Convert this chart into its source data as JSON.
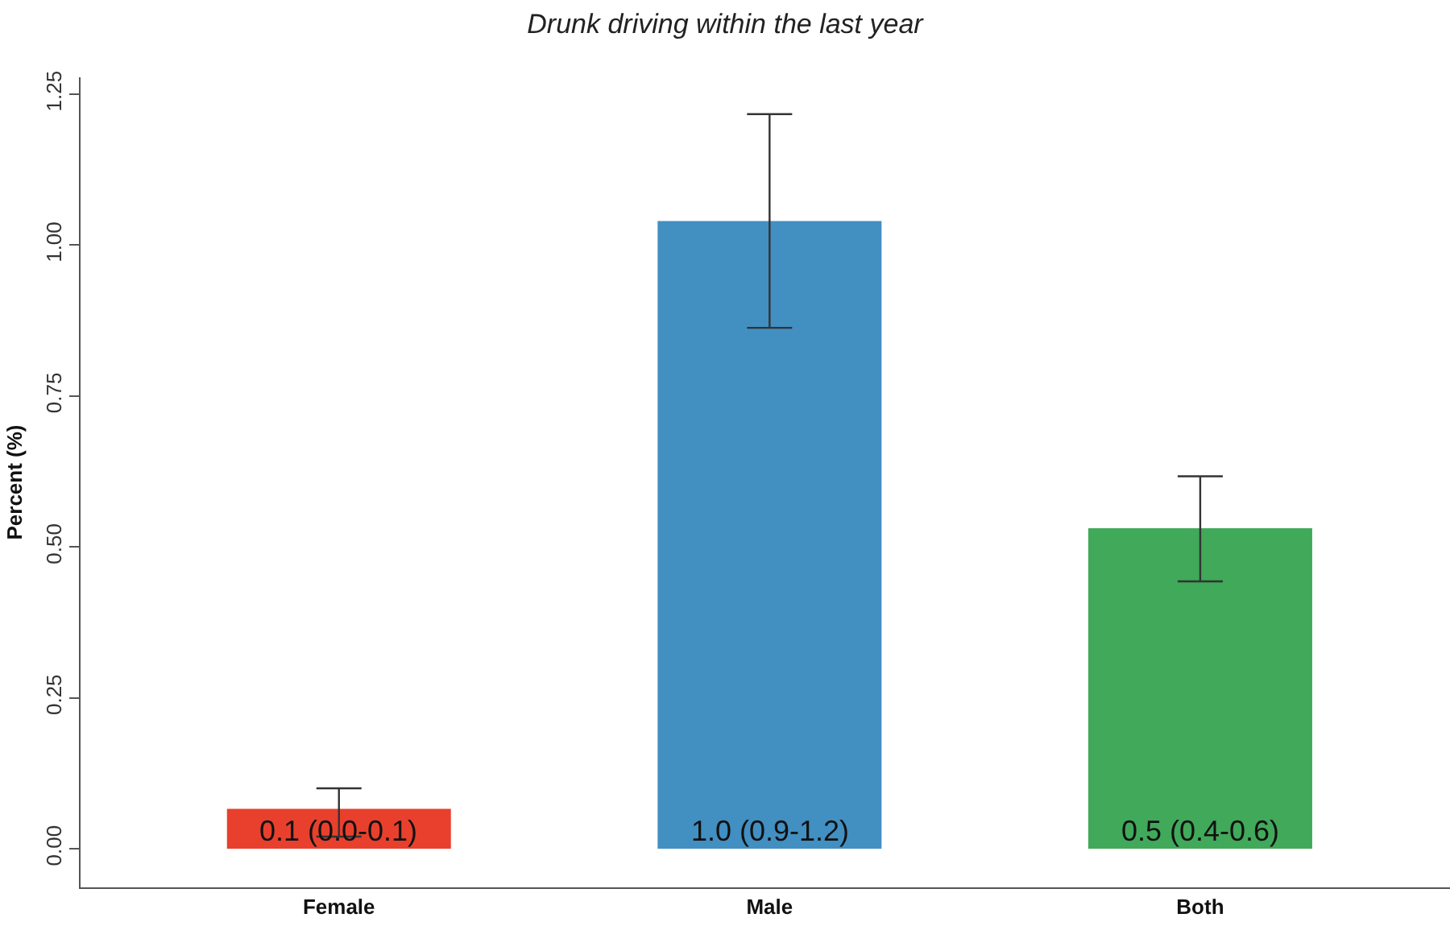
{
  "chart_data": {
    "type": "bar",
    "title": "Drunk driving within the last year",
    "ylabel": "Percent (%)",
    "categories": [
      "Female",
      "Male",
      "Both"
    ],
    "values": [
      0.066,
      1.04,
      0.531
    ],
    "colors": [
      "#e8402d",
      "#428fc2",
      "#41a95a"
    ],
    "errors": [
      [
        0.02,
        0.1
      ],
      [
        0.863,
        1.217
      ],
      [
        0.443,
        0.617
      ]
    ],
    "value_labels": [
      "0.1 (0.0-0.1)",
      "1.0 (0.9-1.2)",
      "0.5 (0.4-0.6)"
    ],
    "ylim": [
      -0.064,
      1.278
    ],
    "yticks": [
      {
        "value": 0,
        "label": "0.00"
      },
      {
        "value": 0.25,
        "label": "0.25"
      },
      {
        "value": 0.5,
        "label": "0.50"
      },
      {
        "value": 0.75,
        "label": "0.75"
      },
      {
        "value": 1,
        "label": "1.00"
      },
      {
        "value": 1.25,
        "label": "1.25"
      }
    ],
    "grid": false
  }
}
